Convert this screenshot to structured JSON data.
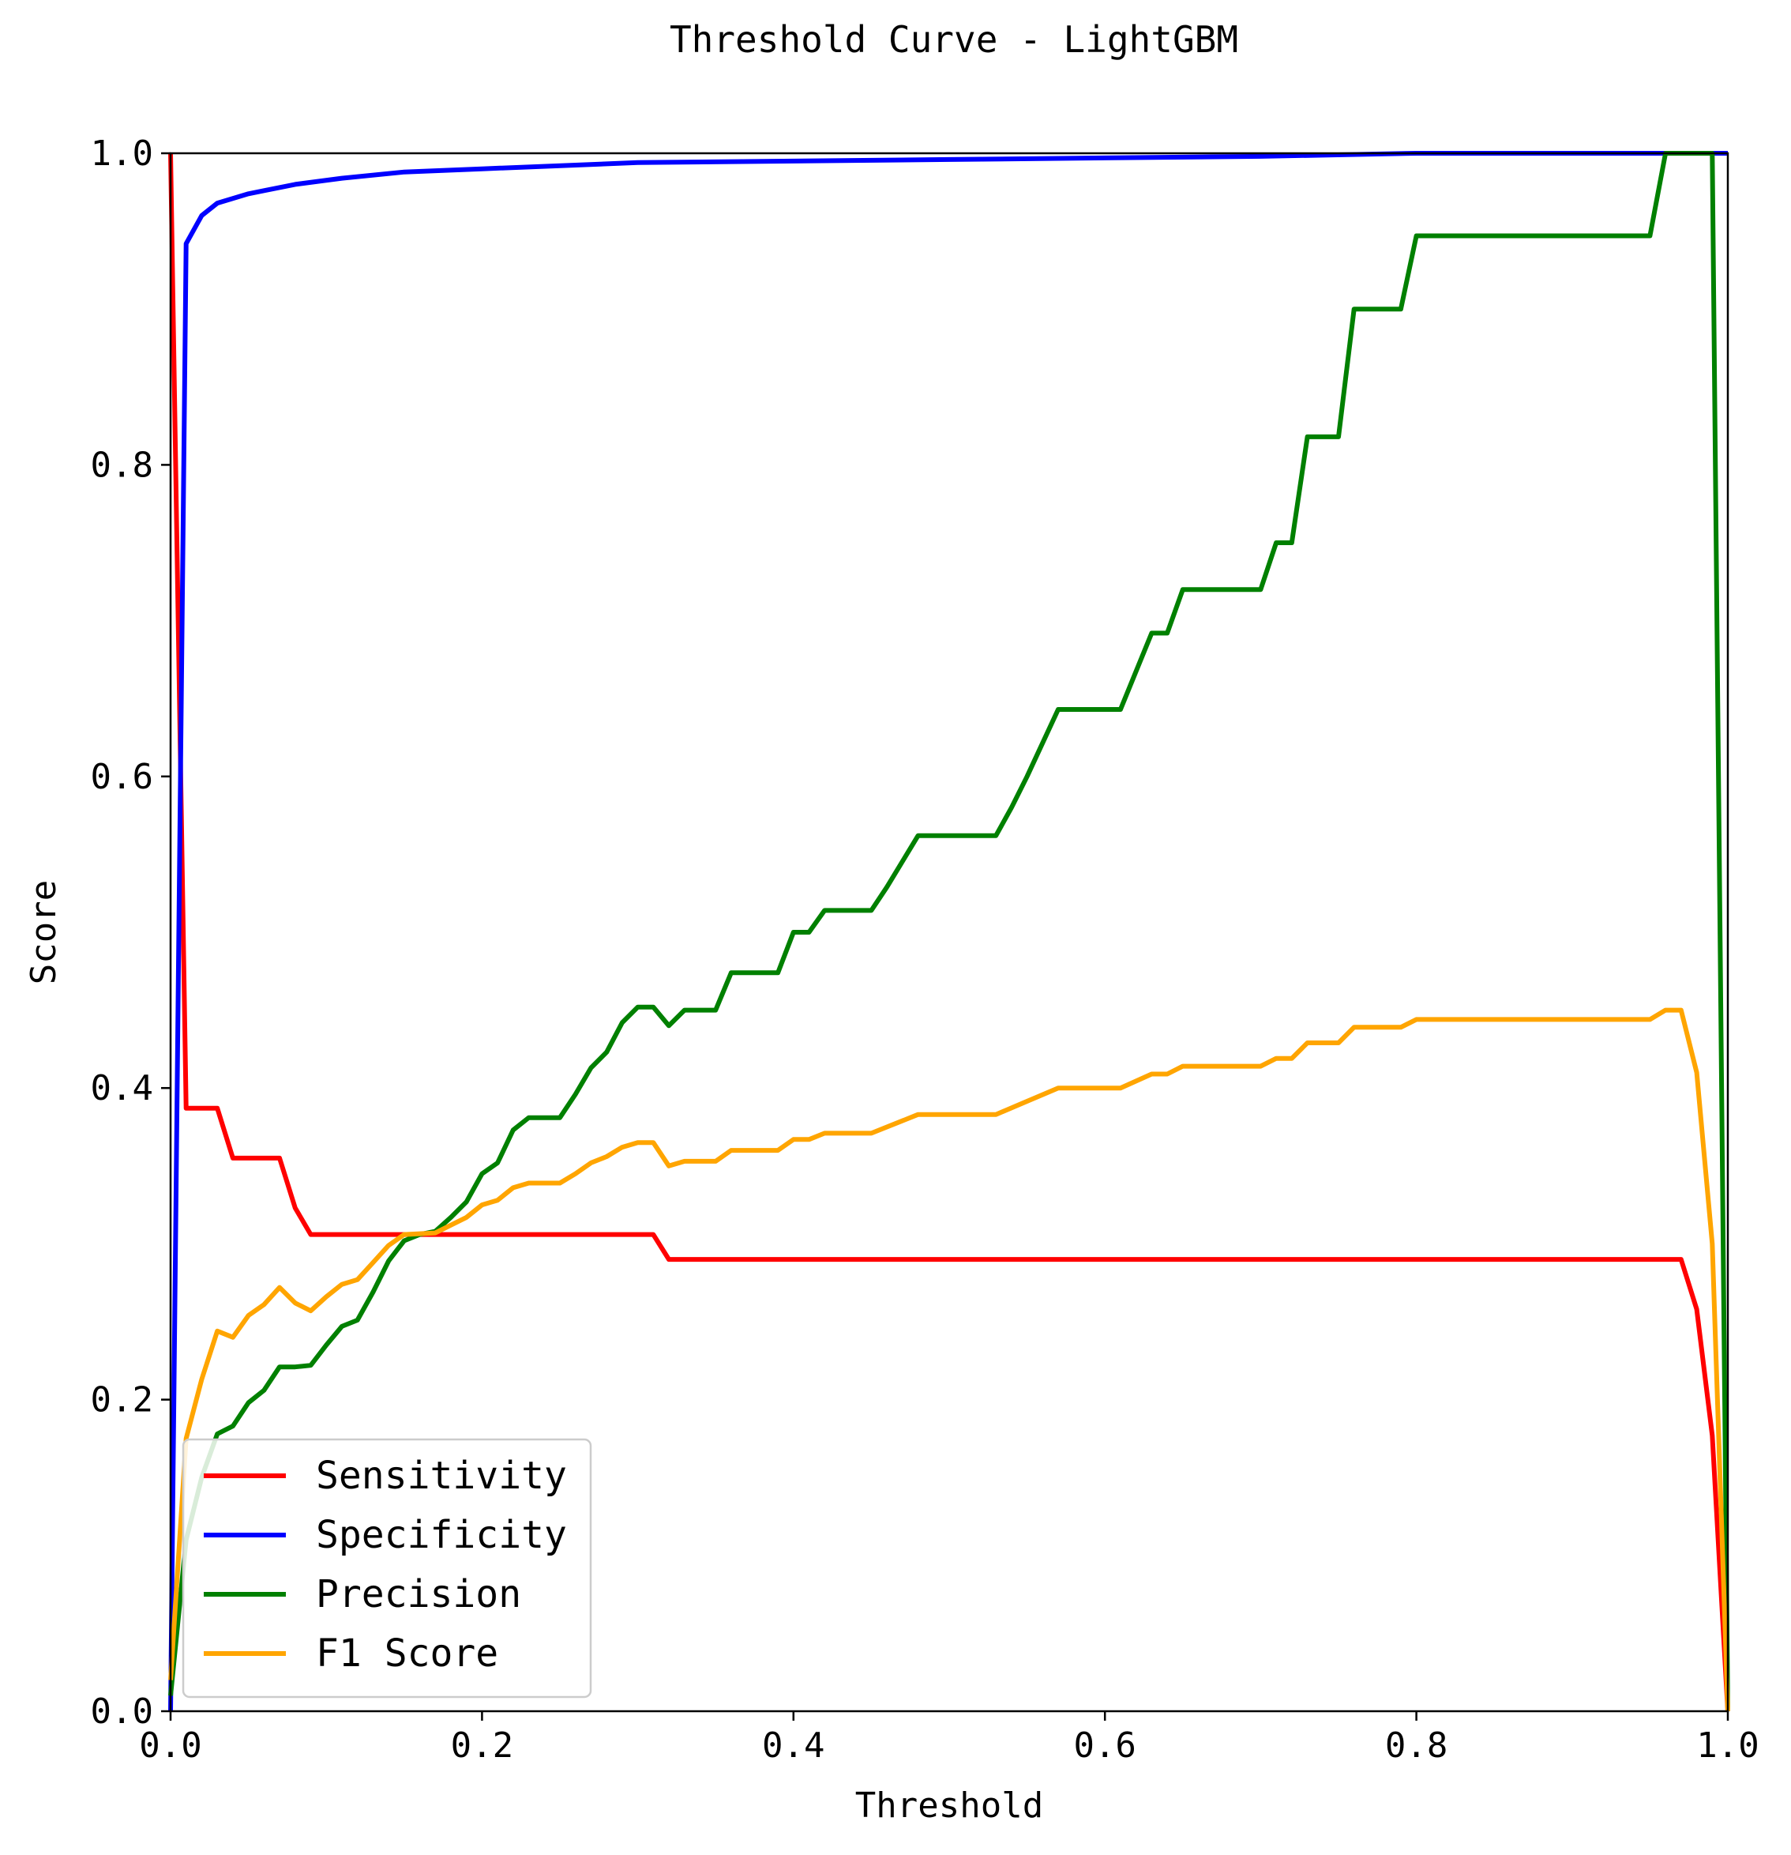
{
  "chart_data": {
    "type": "line",
    "title": "Threshold Curve - LightGBM",
    "xlabel": "Threshold",
    "ylabel": "Score",
    "xlim": [
      0.0,
      1.0
    ],
    "ylim": [
      0.0,
      1.0
    ],
    "xticks": [
      "0.0",
      "0.2",
      "0.4",
      "0.6",
      "0.8",
      "1.0"
    ],
    "yticks": [
      "0.0",
      "0.2",
      "0.4",
      "0.6",
      "0.8",
      "1.0"
    ],
    "grid": false,
    "legend_position": "lower-left",
    "series": [
      {
        "name": "Sensitivity",
        "color": "#ff0000",
        "x": [
          0.0,
          0.01,
          0.03,
          0.04,
          0.07,
          0.08,
          0.09,
          0.31,
          0.32,
          0.97,
          0.98,
          0.99,
          1.0
        ],
        "y": [
          1.0,
          0.387,
          0.387,
          0.355,
          0.355,
          0.323,
          0.306,
          0.306,
          0.29,
          0.29,
          0.258,
          0.177,
          0.0
        ]
      },
      {
        "name": "Specificity",
        "color": "#0000ff",
        "x": [
          0.0,
          0.01,
          0.02,
          0.03,
          0.05,
          0.06,
          0.08,
          0.11,
          0.15,
          0.2,
          0.3,
          0.5,
          0.7,
          0.8,
          1.0
        ],
        "y": [
          0.0,
          0.942,
          0.96,
          0.968,
          0.974,
          0.976,
          0.98,
          0.984,
          0.988,
          0.99,
          0.994,
          0.996,
          0.998,
          1.0,
          1.0
        ]
      },
      {
        "name": "Precision",
        "color": "#008000",
        "x": [
          0.0,
          0.01,
          0.02,
          0.03,
          0.04,
          0.05,
          0.06,
          0.07,
          0.08,
          0.09,
          0.1,
          0.11,
          0.12,
          0.13,
          0.14,
          0.15,
          0.16,
          0.17,
          0.18,
          0.19,
          0.2,
          0.21,
          0.22,
          0.23,
          0.25,
          0.26,
          0.27,
          0.28,
          0.29,
          0.3,
          0.31,
          0.32,
          0.33,
          0.35,
          0.36,
          0.39,
          0.4,
          0.41,
          0.42,
          0.45,
          0.46,
          0.48,
          0.53,
          0.54,
          0.55,
          0.57,
          0.61,
          0.63,
          0.64,
          0.65,
          0.7,
          0.71,
          0.72,
          0.73,
          0.75,
          0.76,
          0.79,
          0.8,
          0.95,
          0.96,
          0.99,
          1.0
        ],
        "y": [
          0.01,
          0.11,
          0.15,
          0.178,
          0.183,
          0.198,
          0.206,
          0.221,
          0.221,
          0.222,
          0.235,
          0.247,
          0.251,
          0.269,
          0.289,
          0.302,
          0.306,
          0.308,
          0.317,
          0.327,
          0.345,
          0.352,
          0.373,
          0.381,
          0.381,
          0.396,
          0.413,
          0.423,
          0.442,
          0.452,
          0.452,
          0.44,
          0.45,
          0.45,
          0.474,
          0.474,
          0.5,
          0.5,
          0.514,
          0.514,
          0.529,
          0.562,
          0.562,
          0.58,
          0.6,
          0.643,
          0.643,
          0.692,
          0.692,
          0.72,
          0.72,
          0.75,
          0.75,
          0.818,
          0.818,
          0.9,
          0.9,
          0.947,
          0.947,
          1.0,
          1.0,
          0.0
        ]
      },
      {
        "name": "F1 Score",
        "color": "#ffa500",
        "x": [
          0.0,
          0.01,
          0.02,
          0.03,
          0.04,
          0.05,
          0.06,
          0.07,
          0.08,
          0.09,
          0.1,
          0.11,
          0.12,
          0.13,
          0.14,
          0.15,
          0.17,
          0.18,
          0.19,
          0.2,
          0.21,
          0.22,
          0.23,
          0.25,
          0.26,
          0.27,
          0.28,
          0.29,
          0.3,
          0.31,
          0.32,
          0.33,
          0.35,
          0.36,
          0.39,
          0.4,
          0.41,
          0.42,
          0.45,
          0.48,
          0.53,
          0.57,
          0.61,
          0.63,
          0.64,
          0.65,
          0.7,
          0.71,
          0.72,
          0.73,
          0.75,
          0.76,
          0.79,
          0.8,
          0.95,
          0.96,
          0.97,
          0.98,
          0.99,
          1.0
        ],
        "y": [
          0.02,
          0.175,
          0.213,
          0.244,
          0.24,
          0.254,
          0.261,
          0.272,
          0.262,
          0.257,
          0.266,
          0.274,
          0.277,
          0.288,
          0.299,
          0.306,
          0.307,
          0.312,
          0.317,
          0.325,
          0.328,
          0.336,
          0.339,
          0.339,
          0.345,
          0.352,
          0.356,
          0.362,
          0.365,
          0.365,
          0.35,
          0.353,
          0.353,
          0.36,
          0.36,
          0.367,
          0.367,
          0.371,
          0.371,
          0.383,
          0.383,
          0.4,
          0.4,
          0.409,
          0.409,
          0.414,
          0.414,
          0.419,
          0.419,
          0.429,
          0.429,
          0.439,
          0.439,
          0.444,
          0.444,
          0.45,
          0.45,
          0.41,
          0.3,
          0.0
        ]
      }
    ]
  }
}
